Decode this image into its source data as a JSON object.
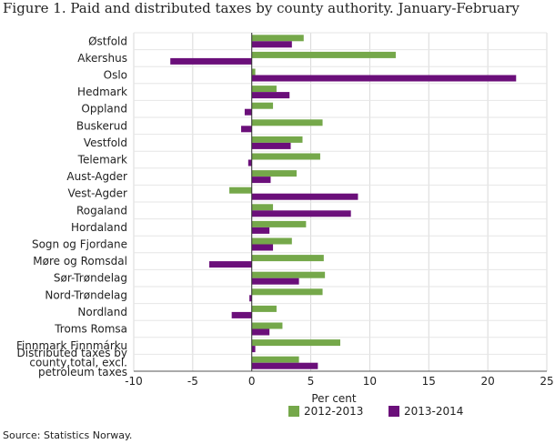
{
  "title": "Figure 1. Paid and distributed taxes by county authority. January-February",
  "source": "Source: Statistics Norway.",
  "chart_data": {
    "type": "bar",
    "orientation": "horizontal",
    "title": "Figure 1. Paid and distributed taxes by county authority. January-February",
    "xlabel": "Per cent",
    "ylabel": "",
    "xlim": [
      -10,
      25
    ],
    "xticks": [
      -10,
      -5,
      0,
      5,
      10,
      15,
      20,
      25
    ],
    "grid": true,
    "legend_position": "bottom",
    "categories": [
      "Østfold",
      "Akershus",
      "Oslo",
      "Hedmark",
      "Oppland",
      "Buskerud",
      "Vestfold",
      "Telemark",
      "Aust-Agder",
      "Vest-Agder",
      "Rogaland",
      "Hordaland",
      "Sogn og Fjordane",
      "Møre og Romsdal",
      "Sør-Trøndelag",
      "Nord-Trøndelag",
      "Nordland",
      "Troms Romsa",
      "Finnmark Finnmárku",
      "Distributed taxes by county,total, excl. petroleum taxes"
    ],
    "category_label_lines": [
      [
        "Østfold"
      ],
      [
        "Akershus"
      ],
      [
        "Oslo"
      ],
      [
        "Hedmark"
      ],
      [
        "Oppland"
      ],
      [
        "Buskerud"
      ],
      [
        "Vestfold"
      ],
      [
        "Telemark"
      ],
      [
        "Aust-Agder"
      ],
      [
        "Vest-Agder"
      ],
      [
        "Rogaland"
      ],
      [
        "Hordaland"
      ],
      [
        "Sogn og Fjordane"
      ],
      [
        "Møre og Romsdal"
      ],
      [
        "Sør-Trøndelag"
      ],
      [
        "Nord-Trøndelag"
      ],
      [
        "Nordland"
      ],
      [
        "Troms Romsa"
      ],
      [
        "Finnmark Finnmárku"
      ],
      [
        "Distributed taxes by",
        "county,total, excl.",
        "petroleum taxes"
      ]
    ],
    "series": [
      {
        "name": "2012-2013",
        "color": "#75a84a",
        "values": [
          4.4,
          12.2,
          0.3,
          2.1,
          1.8,
          6.0,
          4.3,
          5.8,
          3.8,
          -1.9,
          1.8,
          4.6,
          3.4,
          6.1,
          6.2,
          6.0,
          2.1,
          2.6,
          7.5,
          4.0
        ]
      },
      {
        "name": "2013-2014",
        "color": "#6b0f7a",
        "values": [
          3.4,
          -6.9,
          22.4,
          3.2,
          -0.6,
          -0.9,
          3.3,
          -0.3,
          1.6,
          9.0,
          8.4,
          1.5,
          1.8,
          -3.6,
          4.0,
          -0.2,
          -1.7,
          1.5,
          0.3,
          5.6
        ]
      }
    ]
  }
}
